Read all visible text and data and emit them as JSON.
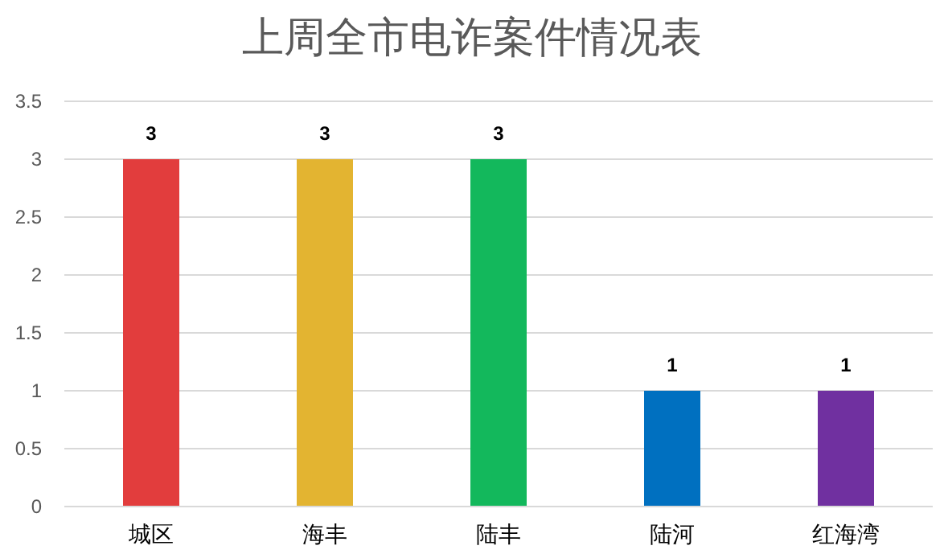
{
  "chart_data": {
    "type": "bar",
    "title": "上周全市电诈案件情况表",
    "categories": [
      "城区",
      "海丰",
      "陆丰",
      "陆河",
      "红海湾"
    ],
    "values": [
      3,
      3,
      3,
      1,
      1
    ],
    "colors": [
      "#e23d3d",
      "#e3b431",
      "#13b85c",
      "#0070c0",
      "#7030a0"
    ],
    "ylim": [
      0,
      3.5
    ],
    "yticks": [
      0,
      0.5,
      1,
      1.5,
      2,
      2.5,
      3,
      3.5
    ],
    "grid": "y",
    "data_labels": true
  }
}
